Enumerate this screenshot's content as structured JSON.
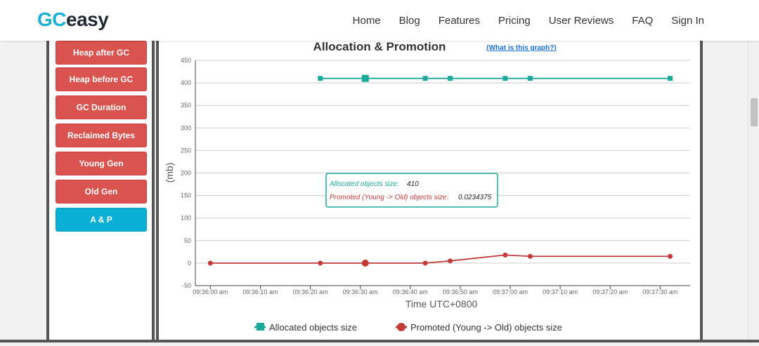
{
  "header": {
    "logo_gc": "GC",
    "logo_easy": "easy",
    "nav": [
      "Home",
      "Blog",
      "Features",
      "Pricing",
      "User Reviews",
      "FAQ",
      "Sign In"
    ]
  },
  "sidebar": {
    "buttons": [
      "Heap after GC",
      "Heap before GC",
      "GC Duration",
      "Reclaimed Bytes",
      "Young Gen",
      "Old Gen",
      "A & P"
    ],
    "active": "A & P"
  },
  "chart": {
    "title": "Allocation & Promotion",
    "help_link": "(What is this graph?)",
    "tooltip": {
      "allocated_label": "Allocated objects size:",
      "allocated_value": "410",
      "promoted_label": "Promoted (Young -> Old) objects size:",
      "promoted_value": "0.0234375"
    },
    "legend": [
      "Allocated objects size",
      "Promoted (Young -> Old) objects size"
    ]
  },
  "colors": {
    "allocated": "#1aa99a",
    "promoted": "#c23a3a",
    "button_red": "#d9534f",
    "button_active": "#0ab0d4",
    "logo_blue": "#1ab0d4"
  },
  "chart_data": {
    "type": "line",
    "title": "Allocation & Promotion",
    "xlabel": "Time UTC+0800",
    "ylabel": "(mb)",
    "ylim": [
      -50,
      450
    ],
    "yticks": [
      -50,
      0,
      50,
      100,
      150,
      200,
      250,
      300,
      350,
      400,
      450
    ],
    "xticks": [
      "09:36:00 am",
      "09:36:10 am",
      "09:36:20 am",
      "09:36:30 am",
      "09:36:40 am",
      "09:36:50 am",
      "09:37:00 am",
      "09:37:10 am",
      "09:37:20 am",
      "09:37:30 am"
    ],
    "xlim_seconds": [
      -3,
      96
    ],
    "series": [
      {
        "name": "Allocated objects size",
        "x_seconds": [
          22,
          31,
          43,
          48,
          59,
          64,
          92
        ],
        "values": [
          410,
          410,
          410,
          410,
          410,
          410,
          410
        ],
        "highlight_index": 1
      },
      {
        "name": "Promoted (Young -> Old) objects size",
        "x_seconds": [
          0,
          22,
          31,
          43,
          48,
          59,
          64,
          92
        ],
        "values": [
          0,
          0,
          0.0234375,
          0,
          5,
          18,
          15,
          15
        ],
        "highlight_index": 2
      }
    ],
    "grid": true,
    "legend_position": "bottom"
  }
}
